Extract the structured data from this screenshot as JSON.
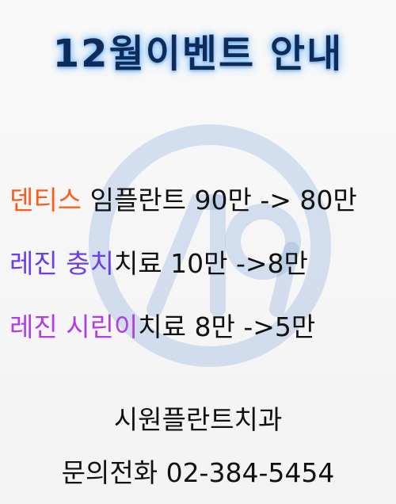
{
  "title": "12월이벤트 안내",
  "watermark": {
    "icon": "siwon-logo-circle",
    "color": "#7fa6d8"
  },
  "events": [
    {
      "highlight": "덴티스",
      "rest": " 임플란트 90만 -> 80만",
      "color": "#ff5a1a"
    },
    {
      "highlight": "레진 충치",
      "rest": "치료 10만 ->8만",
      "color": "#6a3df0"
    },
    {
      "highlight": "레진 시린이",
      "rest": "치료 8만 ->5만",
      "color": "#b23ce8"
    }
  ],
  "clinic_name": "시원플란트치과",
  "contact": "문의전화 02-384-5454"
}
